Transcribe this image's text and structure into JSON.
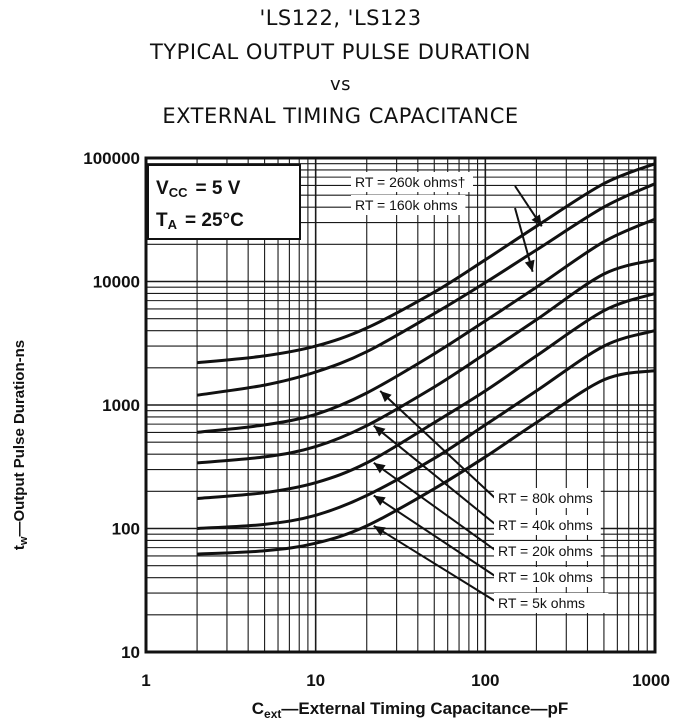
{
  "title": {
    "line1": "'LS122, 'LS123",
    "line2": "TYPICAL OUTPUT PULSE DURATION",
    "line3": "vs",
    "line4": "EXTERNAL TIMING CAPACITANCE"
  },
  "conditions": {
    "vcc_main": "V",
    "vcc_sub": "CC",
    "vcc_value": "= 5 V",
    "ta_main": "T",
    "ta_sub": "A",
    "ta_value": "= 25°C"
  },
  "axes": {
    "xlabel_main": "C",
    "xlabel_sub": "ext",
    "xlabel_rest": "—External Timing Capacitance—pF",
    "ylabel_main": "t",
    "ylabel_sub": "w",
    "ylabel_rest": "—Output Pulse Duration-ns"
  },
  "chart_data": {
    "type": "line",
    "x_scale": "log",
    "y_scale": "log",
    "xlim": [
      1,
      1000
    ],
    "ylim": [
      10,
      100000
    ],
    "x_ticks": [
      "1",
      "10",
      "100",
      "1000"
    ],
    "y_ticks": [
      "10",
      "100",
      "1000",
      "10000",
      "100000"
    ],
    "grid": true,
    "series": [
      {
        "name": "RT = 260k ohms†",
        "x": [
          2,
          5,
          10,
          20,
          50,
          100,
          200,
          500,
          1000
        ],
        "y": [
          2200,
          2500,
          3000,
          4200,
          8200,
          15000,
          28000,
          62000,
          90000
        ]
      },
      {
        "name": "RT = 160k ohms",
        "x": [
          2,
          5,
          10,
          20,
          50,
          100,
          200,
          500,
          1000
        ],
        "y": [
          1200,
          1450,
          1850,
          2700,
          5500,
          9800,
          18000,
          40000,
          62000
        ]
      },
      {
        "name": "RT = 80k ohms",
        "x": [
          2,
          5,
          10,
          20,
          50,
          100,
          200,
          500,
          1000
        ],
        "y": [
          600,
          690,
          840,
          1250,
          2600,
          4800,
          9000,
          21000,
          32000
        ]
      },
      {
        "name": "RT = 40k ohms",
        "x": [
          2,
          5,
          10,
          20,
          50,
          100,
          200,
          500,
          1000
        ],
        "y": [
          340,
          380,
          460,
          680,
          1400,
          2600,
          4900,
          11500,
          15000
        ]
      },
      {
        "name": "RT = 20k ohms",
        "x": [
          2,
          5,
          10,
          20,
          50,
          100,
          200,
          500,
          1000
        ],
        "y": [
          175,
          195,
          235,
          340,
          720,
          1300,
          2500,
          5800,
          8000
        ]
      },
      {
        "name": "RT = 10k ohms",
        "x": [
          2,
          5,
          10,
          20,
          50,
          100,
          200,
          500,
          1000
        ],
        "y": [
          100,
          108,
          128,
          185,
          370,
          690,
          1300,
          3000,
          4000
        ]
      },
      {
        "name": "RT =   5k ohms",
        "x": [
          2,
          5,
          10,
          20,
          50,
          100,
          200,
          500,
          1000
        ],
        "y": [
          62,
          66,
          76,
          105,
          210,
          380,
          720,
          1600,
          1900
        ]
      }
    ],
    "colors": {
      "line": "#111111",
      "grid": "#1a1a1a",
      "background": "#ffffff"
    }
  }
}
